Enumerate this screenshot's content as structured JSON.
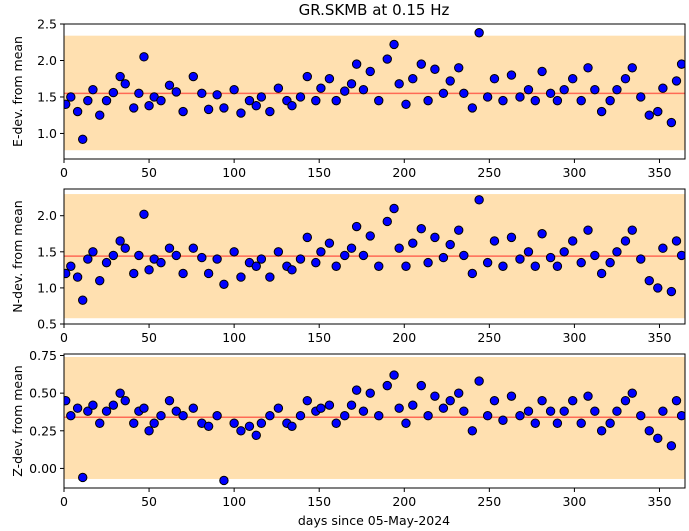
{
  "figure": {
    "title": "GR.SKMB at 0.15 Hz",
    "xlabel": "days since 05-May-2024",
    "colors": {
      "marker_fill": "#0000ff",
      "marker_edge": "#000000",
      "band_fill": "#ffe0b0",
      "mean_line": "#ff6a55"
    }
  },
  "chart_data": [
    {
      "type": "scatter",
      "ylabel": "E-dev. from mean",
      "xlim": [
        0,
        365
      ],
      "ylim": [
        0.65,
        2.5
      ],
      "xticks": [
        "0",
        "50",
        "100",
        "150",
        "200",
        "250",
        "300",
        "350"
      ],
      "yticks": [
        "1.0",
        "1.5",
        "2.0",
        "2.5"
      ],
      "mean": 1.55,
      "band": [
        0.77,
        2.34
      ],
      "x": [
        1,
        4,
        8,
        11,
        14,
        17,
        21,
        25,
        29,
        33,
        36,
        41,
        44,
        47,
        50,
        53,
        57,
        62,
        66,
        70,
        76,
        81,
        85,
        90,
        94,
        100,
        104,
        109,
        113,
        116,
        121,
        126,
        131,
        134,
        139,
        143,
        148,
        151,
        156,
        160,
        165,
        169,
        172,
        176,
        180,
        185,
        190,
        194,
        197,
        201,
        205,
        210,
        214,
        218,
        223,
        227,
        232,
        235,
        240,
        244,
        249,
        253,
        258,
        263,
        268,
        273,
        277,
        281,
        286,
        290,
        294,
        299,
        304,
        308,
        312,
        316,
        321,
        325,
        330,
        334,
        339,
        344,
        349,
        352,
        357,
        360,
        363
      ],
      "y": [
        1.4,
        1.5,
        1.3,
        0.92,
        1.45,
        1.6,
        1.25,
        1.45,
        1.56,
        1.78,
        1.68,
        1.35,
        1.55,
        2.05,
        1.38,
        1.5,
        1.45,
        1.66,
        1.57,
        1.3,
        1.78,
        1.55,
        1.33,
        1.53,
        1.35,
        1.6,
        1.28,
        1.45,
        1.38,
        1.5,
        1.3,
        1.62,
        1.45,
        1.38,
        1.5,
        1.78,
        1.45,
        1.62,
        1.75,
        1.45,
        1.58,
        1.68,
        1.95,
        1.6,
        1.85,
        1.45,
        2.02,
        2.22,
        1.68,
        1.4,
        1.75,
        1.95,
        1.45,
        1.88,
        1.55,
        1.72,
        1.9,
        1.55,
        1.35,
        2.38,
        1.5,
        1.75,
        1.45,
        1.8,
        1.5,
        1.6,
        1.45,
        1.85,
        1.55,
        1.45,
        1.6,
        1.75,
        1.45,
        1.9,
        1.6,
        1.3,
        1.45,
        1.6,
        1.75,
        1.9,
        1.5,
        1.25,
        1.3,
        1.62,
        1.15,
        1.72,
        1.95
      ]
    },
    {
      "type": "scatter",
      "ylabel": "N-dev. from mean",
      "xlim": [
        0,
        365
      ],
      "ylim": [
        0.5,
        2.37
      ],
      "xticks": [
        "0",
        "50",
        "100",
        "150",
        "200",
        "250",
        "300",
        "350"
      ],
      "yticks": [
        "0.5",
        "1.0",
        "1.5",
        "2.0"
      ],
      "mean": 1.44,
      "band": [
        0.58,
        2.3
      ],
      "x": [
        1,
        4,
        8,
        11,
        14,
        17,
        21,
        25,
        29,
        33,
        36,
        41,
        44,
        47,
        50,
        53,
        57,
        62,
        66,
        70,
        76,
        81,
        85,
        90,
        94,
        100,
        104,
        109,
        113,
        116,
        121,
        126,
        131,
        134,
        139,
        143,
        148,
        151,
        156,
        160,
        165,
        169,
        172,
        176,
        180,
        185,
        190,
        194,
        197,
        201,
        205,
        210,
        214,
        218,
        223,
        227,
        232,
        235,
        240,
        244,
        249,
        253,
        258,
        263,
        268,
        273,
        277,
        281,
        286,
        290,
        294,
        299,
        304,
        308,
        312,
        316,
        321,
        325,
        330,
        334,
        339,
        344,
        349,
        352,
        357,
        360,
        363
      ],
      "y": [
        1.2,
        1.3,
        1.15,
        0.83,
        1.4,
        1.5,
        1.1,
        1.35,
        1.45,
        1.65,
        1.55,
        1.2,
        1.45,
        2.02,
        1.25,
        1.4,
        1.35,
        1.55,
        1.45,
        1.2,
        1.55,
        1.42,
        1.2,
        1.4,
        1.05,
        1.5,
        1.15,
        1.35,
        1.3,
        1.4,
        1.15,
        1.5,
        1.3,
        1.25,
        1.4,
        1.7,
        1.35,
        1.5,
        1.62,
        1.3,
        1.45,
        1.55,
        1.85,
        1.45,
        1.72,
        1.3,
        1.92,
        2.1,
        1.55,
        1.3,
        1.62,
        1.82,
        1.35,
        1.7,
        1.42,
        1.6,
        1.8,
        1.45,
        1.2,
        2.22,
        1.35,
        1.65,
        1.3,
        1.7,
        1.4,
        1.5,
        1.3,
        1.75,
        1.42,
        1.3,
        1.5,
        1.65,
        1.35,
        1.8,
        1.45,
        1.2,
        1.35,
        1.5,
        1.65,
        1.8,
        1.4,
        1.1,
        1.0,
        1.55,
        0.95,
        1.65,
        1.45
      ]
    },
    {
      "type": "scatter",
      "ylabel": "Z-dev. from mean",
      "xlim": [
        0,
        365
      ],
      "ylim": [
        -0.13,
        0.76
      ],
      "xticks": [
        "0",
        "50",
        "100",
        "150",
        "200",
        "250",
        "300",
        "350"
      ],
      "yticks": [
        "0.00",
        "0.25",
        "0.50",
        "0.75"
      ],
      "mean": 0.34,
      "band": [
        -0.07,
        0.74
      ],
      "x": [
        1,
        4,
        8,
        11,
        14,
        17,
        21,
        25,
        29,
        33,
        36,
        41,
        44,
        47,
        50,
        53,
        57,
        62,
        66,
        70,
        76,
        81,
        85,
        90,
        94,
        100,
        104,
        109,
        113,
        116,
        121,
        126,
        131,
        134,
        139,
        143,
        148,
        151,
        156,
        160,
        165,
        169,
        172,
        176,
        180,
        185,
        190,
        194,
        197,
        201,
        205,
        210,
        214,
        218,
        223,
        227,
        232,
        235,
        240,
        244,
        249,
        253,
        258,
        263,
        268,
        273,
        277,
        281,
        286,
        290,
        294,
        299,
        304,
        308,
        312,
        316,
        321,
        325,
        330,
        334,
        339,
        344,
        349,
        352,
        357,
        360,
        363
      ],
      "y": [
        0.45,
        0.35,
        0.4,
        -0.06,
        0.38,
        0.42,
        0.3,
        0.38,
        0.42,
        0.5,
        0.45,
        0.3,
        0.38,
        0.4,
        0.25,
        0.3,
        0.35,
        0.45,
        0.38,
        0.35,
        0.4,
        0.3,
        0.28,
        0.35,
        -0.08,
        0.3,
        0.25,
        0.28,
        0.22,
        0.3,
        0.35,
        0.4,
        0.3,
        0.28,
        0.35,
        0.45,
        0.38,
        0.4,
        0.42,
        0.3,
        0.35,
        0.42,
        0.52,
        0.38,
        0.5,
        0.35,
        0.55,
        0.62,
        0.4,
        0.3,
        0.42,
        0.55,
        0.35,
        0.48,
        0.4,
        0.45,
        0.5,
        0.38,
        0.25,
        0.58,
        0.35,
        0.45,
        0.32,
        0.48,
        0.35,
        0.38,
        0.3,
        0.45,
        0.38,
        0.3,
        0.38,
        0.45,
        0.3,
        0.48,
        0.38,
        0.25,
        0.3,
        0.38,
        0.45,
        0.5,
        0.35,
        0.25,
        0.2,
        0.38,
        0.15,
        0.45,
        0.35
      ]
    }
  ]
}
